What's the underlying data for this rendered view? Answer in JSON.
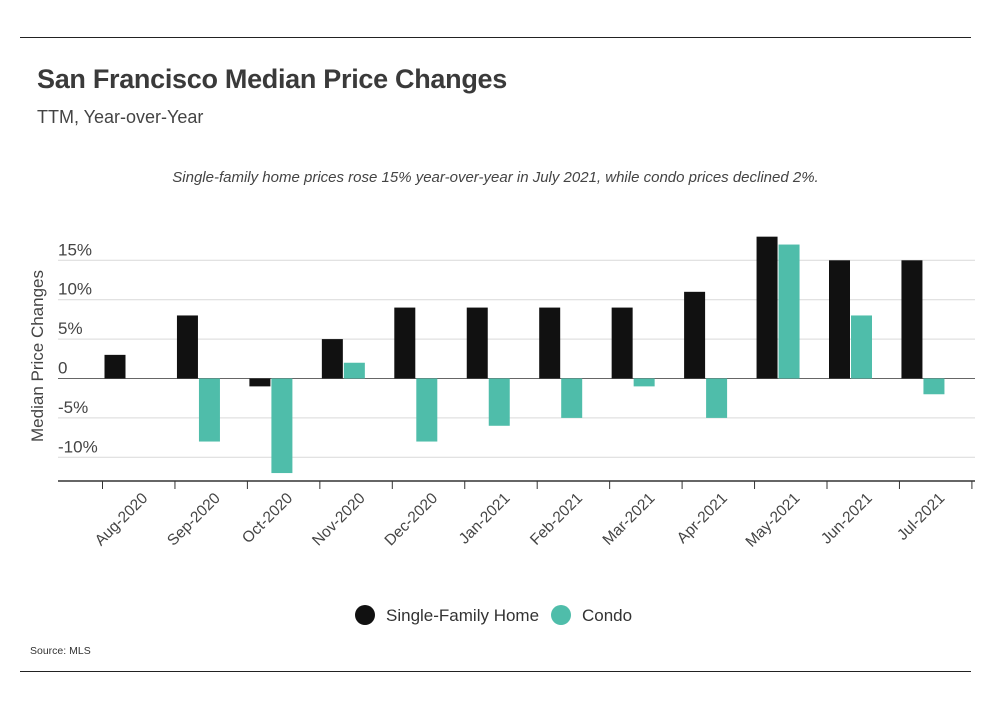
{
  "chart_data": {
    "type": "bar",
    "title": "San Francisco Median Price Changes",
    "subtitle": "TTM, Year-over-Year",
    "annotation": "Single-family home prices rose 15% year-over-year in July 2021, while condo prices declined 2%.",
    "ylabel": "Median Price Changes",
    "xlabel": "",
    "categories": [
      "Aug-2020",
      "Sep-2020",
      "Oct-2020",
      "Nov-2020",
      "Dec-2020",
      "Jan-2021",
      "Feb-2021",
      "Mar-2021",
      "Apr-2021",
      "May-2021",
      "Jun-2021",
      "Jul-2021"
    ],
    "series": [
      {
        "name": "Single-Family Home",
        "color": "#111111",
        "values": [
          3,
          8,
          -1,
          5,
          9,
          9,
          9,
          9,
          11,
          18,
          15,
          15
        ]
      },
      {
        "name": "Condo",
        "color": "#4fbdaa",
        "values": [
          0,
          -8,
          -12,
          2,
          -8,
          -6,
          -5,
          -1,
          -5,
          17,
          8,
          -2
        ]
      }
    ],
    "yticks": [
      {
        "value": 15,
        "label": "15%"
      },
      {
        "value": 10,
        "label": "10%"
      },
      {
        "value": 5,
        "label": "5%"
      },
      {
        "value": 0,
        "label": "0"
      },
      {
        "value": -5,
        "label": "-5%"
      },
      {
        "value": -10,
        "label": "-10%"
      }
    ],
    "ylim": [
      -13,
      18
    ],
    "grid": true,
    "legend_position": "bottom-center",
    "source": "Source:  MLS"
  }
}
